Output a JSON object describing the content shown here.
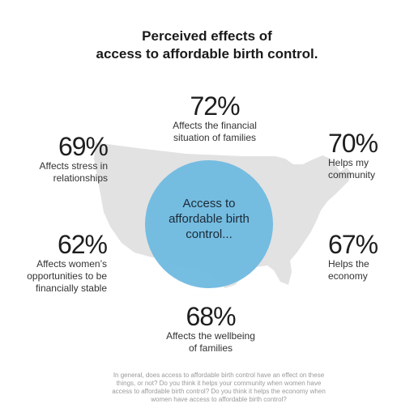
{
  "title": {
    "line1": "Perceived effects of",
    "line2": "access to affordable birth control."
  },
  "center": {
    "line1": "Access to",
    "line2": "affordable birth",
    "line3": "control..."
  },
  "stats": {
    "top": {
      "value": "72%",
      "label1": "Affects the financial",
      "label2": "situation of families"
    },
    "upper_left": {
      "value": "69%",
      "label1": "Affects stress in",
      "label2": "relationships"
    },
    "upper_right": {
      "value": "70%",
      "label1": "Helps my",
      "label2": "community"
    },
    "lower_left": {
      "value": "62%",
      "label1": "Affects women’s",
      "label2": "opportunities to be",
      "label3": "financially stable"
    },
    "lower_right": {
      "value": "67%",
      "label1": "Helps the",
      "label2": "economy"
    },
    "bottom": {
      "value": "68%",
      "label1": "Affects the wellbeing",
      "label2": "of families"
    }
  },
  "footnote": {
    "line1": "In general, does access to affordable birth control have an effect on these",
    "line2": "things, or not? Do you think it helps your community when women have",
    "line3": "access to affordable birth control? Do you think it helps the economy when",
    "line4": "women have access to affordable birth control?"
  },
  "colors": {
    "circle": "#6fb9e0",
    "map": "#e3e3e3"
  }
}
